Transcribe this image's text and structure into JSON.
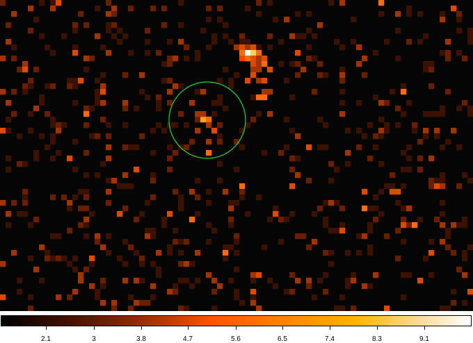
{
  "colorbar": {
    "ticks": [
      "2.1",
      "3",
      "3.8",
      "4.7",
      "5.6",
      "6.5",
      "7.4",
      "8.3",
      "9.1"
    ]
  },
  "region": {
    "shape": "circle",
    "color": "#22dd22"
  },
  "image": {
    "grid_cols": 85,
    "grid_rows": 56,
    "palette": [
      "#000000",
      "#3a1000",
      "#6a1e00",
      "#a03400",
      "#e04a00",
      "#ff6a10",
      "#ffa020",
      "#ffd060",
      "#ffffff"
    ]
  }
}
